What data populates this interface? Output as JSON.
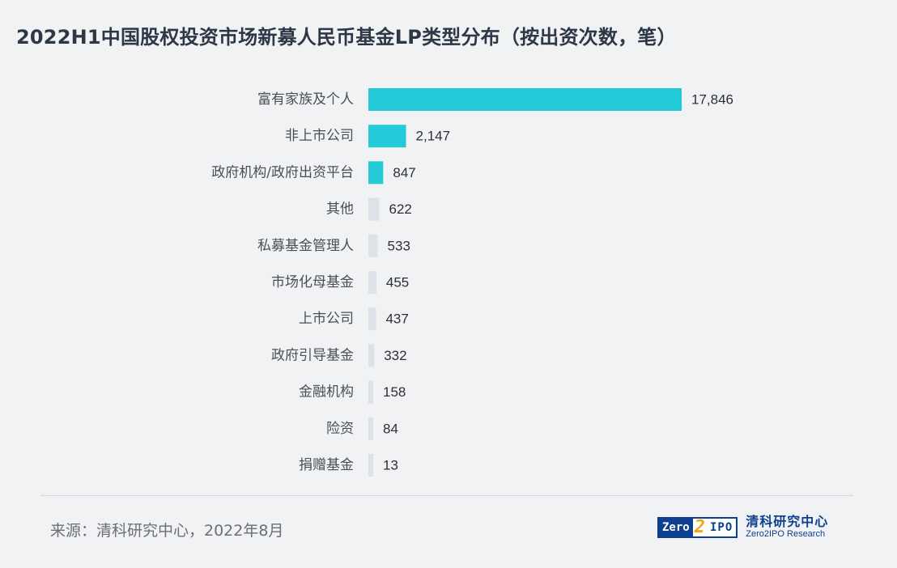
{
  "title": "2022H1中国股权投资市场新募人民币基金LP类型分布（按出资次数，笔）",
  "source": "来源：清科研究中心，2022年8月",
  "logo": {
    "mark_left": "Zero",
    "mark_mid": "2",
    "mark_right": "IPO",
    "name_cn": "清科研究中心",
    "name_en": "Zero2IPO Research"
  },
  "colors": {
    "highlight": "#22cbd7",
    "muted": "#dde1e8",
    "label": "#4a4f57",
    "value": "#2d3035"
  },
  "chart_data": {
    "type": "bar",
    "orientation": "horizontal",
    "title": "2022H1中国股权投资市场新募人民币基金LP类型分布（按出资次数，笔）",
    "categories": [
      "富有家族及个人",
      "非上市公司",
      "政府机构/政府出资平台",
      "其他",
      "私募基金管理人",
      "市场化母基金",
      "上市公司",
      "政府引导基金",
      "金融机构",
      "险资",
      "捐赠基金"
    ],
    "values": [
      17846,
      2147,
      847,
      622,
      533,
      455,
      437,
      332,
      158,
      84,
      13
    ],
    "labels": [
      "17,846",
      "2,147",
      "847",
      "622",
      "533",
      "455",
      "437",
      "332",
      "158",
      "84",
      "13"
    ],
    "highlight_count": 3,
    "grid": false,
    "legend": "none"
  }
}
